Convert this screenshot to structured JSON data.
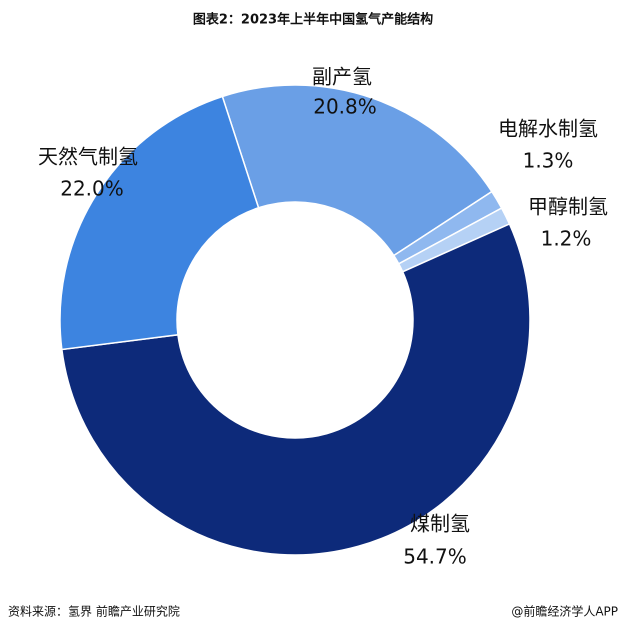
{
  "chart_data": {
    "type": "donut",
    "title": "图表2：2023年上半年中国氢气产能结构",
    "categories": [
      "副产氢",
      "电解水制氢",
      "甲醇制氢",
      "煤制氢",
      "天然气制氢"
    ],
    "values": [
      20.8,
      1.3,
      1.2,
      54.7,
      22.0
    ],
    "value_labels": [
      "20.8%",
      "1.3%",
      "1.2%",
      "54.7%",
      "22.0%"
    ],
    "colors": [
      "#6a9fe6",
      "#8fb8ef",
      "#b5d1f5",
      "#0d2a7a",
      "#3d84e0"
    ],
    "source": "资料来源：氢界 前瞻产业研究院",
    "credit": "@前瞻经济学人APP"
  }
}
